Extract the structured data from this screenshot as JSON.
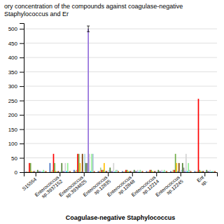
{
  "chart_data": {
    "type": "bar",
    "title": "ory concentration of the compounds against coagulase-negative Staphylococcus and Er",
    "xlabel": "Coagulase-negative Staphylococcus",
    "categories": [
      "S15554",
      "Enterococcus\nsp.3937152",
      "Enterococcus\nsp.3934825",
      "Enterococcus\nsp.12835",
      "Enterococcus\nsp.12848",
      "Enterococcus\nsp.12214",
      "Enterococcus\nsp.12245",
      "Ent\nsp."
    ],
    "series": [
      {
        "color": "#4472C4",
        "values": [
          2,
          32,
          8,
          4,
          4,
          4,
          4,
          4
        ]
      },
      {
        "color": "#ED7D31",
        "values": [
          2,
          2,
          4,
          4,
          2,
          2,
          2,
          2
        ]
      },
      {
        "color": "#A9D18E",
        "values": [
          2,
          8,
          8,
          16,
          4,
          4,
          8,
          4
        ]
      },
      {
        "color": "#FF0000",
        "values": [
          32,
          64,
          64,
          8,
          8,
          8,
          8,
          256
        ]
      },
      {
        "color": "#70AD47",
        "values": [
          32,
          32,
          64,
          8,
          8,
          8,
          64,
          8
        ]
      },
      {
        "color": "#FFC000",
        "values": [
          4,
          4,
          32,
          32,
          4,
          4,
          32,
          4
        ]
      },
      {
        "color": "#5B9BD5",
        "values": [
          2,
          2,
          2,
          4,
          4,
          2,
          4,
          4
        ]
      },
      {
        "color": "#7B3F00",
        "values": [
          4,
          4,
          64,
          4,
          4,
          4,
          32,
          4
        ]
      },
      {
        "color": "#FFB6C1",
        "values": [
          4,
          4,
          4,
          4,
          4,
          4,
          4,
          4
        ]
      },
      {
        "color": "#ADD8E6",
        "values": [
          4,
          4,
          64,
          8,
          4,
          4,
          8,
          4
        ]
      },
      {
        "color": "#548235",
        "values": [
          8,
          32,
          32,
          16,
          8,
          8,
          32,
          8
        ]
      },
      {
        "color": "#808080",
        "values": [
          4,
          4,
          32,
          4,
          4,
          4,
          16,
          4
        ]
      },
      {
        "color": "#9370DB",
        "values": [
          4,
          4,
          500,
          4,
          4,
          4,
          4,
          4
        ],
        "errors": [
          null,
          null,
          10,
          null,
          null,
          null,
          null,
          null
        ]
      },
      {
        "color": "#D3D3D3",
        "values": [
          4,
          32,
          64,
          32,
          8,
          8,
          64,
          8
        ]
      },
      {
        "color": "#00BFFF",
        "values": [
          2,
          4,
          4,
          2,
          2,
          2,
          4,
          2
        ]
      },
      {
        "color": "#90EE90",
        "values": [
          8,
          32,
          64,
          8,
          8,
          8,
          32,
          4
        ]
      },
      {
        "color": "#B0C4DE",
        "values": [
          4,
          4,
          64,
          8,
          4,
          4,
          8,
          4
        ]
      },
      {
        "color": "#C55A11",
        "values": [
          4,
          4,
          4,
          4,
          4,
          4,
          4,
          4
        ]
      }
    ],
    "ylim": [
      0,
      520
    ],
    "yticks": [
      0,
      50,
      100,
      150,
      200,
      250,
      300,
      350,
      400,
      450,
      500
    ],
    "grid": true
  }
}
